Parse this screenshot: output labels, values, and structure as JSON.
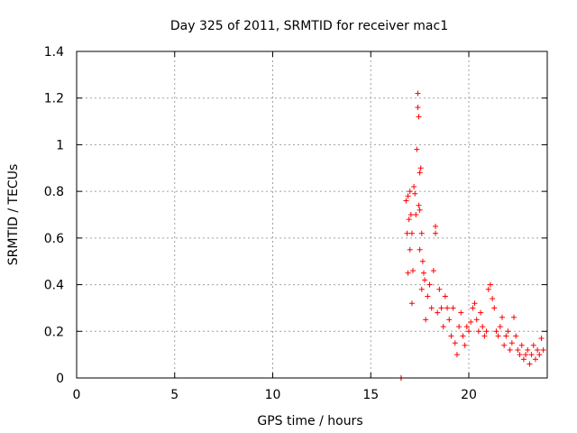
{
  "chart_data": {
    "type": "scatter",
    "title": "Day 325 of 2011, SRMTID for receiver mac1",
    "xlabel": "GPS time / hours",
    "ylabel": "SRMTID / TECUs",
    "xlim": [
      0,
      24
    ],
    "ylim": [
      0,
      1.4
    ],
    "xticks": [
      0,
      5,
      10,
      15,
      20
    ],
    "yticks": [
      0,
      0.2,
      0.4,
      0.6,
      0.8,
      1,
      1.2,
      1.4
    ],
    "ytick_labels": [
      "0",
      "0.2",
      "0.4",
      "0.6",
      "0.8",
      "1",
      "1.2",
      "1.4"
    ],
    "grid": true,
    "marker": "+",
    "color": "#ff0000",
    "series": [
      {
        "name": "mac1",
        "x": [
          16.55,
          16.55,
          16.55,
          16.8,
          16.85,
          16.9,
          16.9,
          16.95,
          17.0,
          17.0,
          17.05,
          17.1,
          17.1,
          17.15,
          17.2,
          17.25,
          17.3,
          17.35,
          17.4,
          17.4,
          17.45,
          17.45,
          17.5,
          17.5,
          17.5,
          17.55,
          17.6,
          17.6,
          17.65,
          17.7,
          17.75,
          17.8,
          17.9,
          18.0,
          18.1,
          18.2,
          18.3,
          18.3,
          18.4,
          18.5,
          18.6,
          18.7,
          18.8,
          18.9,
          19.0,
          19.1,
          19.2,
          19.3,
          19.4,
          19.5,
          19.6,
          19.7,
          19.8,
          19.9,
          20.0,
          20.1,
          20.2,
          20.3,
          20.4,
          20.5,
          20.6,
          20.7,
          20.8,
          20.9,
          21.0,
          21.1,
          21.2,
          21.3,
          21.4,
          21.5,
          21.6,
          21.7,
          21.8,
          21.9,
          22.0,
          22.1,
          22.2,
          22.3,
          22.4,
          22.5,
          22.6,
          22.7,
          22.8,
          22.9,
          23.0,
          23.1,
          23.2,
          23.3,
          23.4,
          23.5,
          23.6,
          23.7,
          23.8
        ],
        "y": [
          0.0,
          0.0,
          0.0,
          0.76,
          0.62,
          0.45,
          0.78,
          0.68,
          0.8,
          0.55,
          0.7,
          0.32,
          0.62,
          0.46,
          0.82,
          0.79,
          0.7,
          0.98,
          1.22,
          1.16,
          1.12,
          0.74,
          0.88,
          0.72,
          0.55,
          0.9,
          0.62,
          0.38,
          0.5,
          0.45,
          0.42,
          0.25,
          0.35,
          0.4,
          0.3,
          0.46,
          0.62,
          0.65,
          0.28,
          0.38,
          0.3,
          0.22,
          0.35,
          0.3,
          0.25,
          0.18,
          0.3,
          0.15,
          0.1,
          0.22,
          0.28,
          0.18,
          0.14,
          0.22,
          0.2,
          0.24,
          0.3,
          0.32,
          0.25,
          0.2,
          0.28,
          0.22,
          0.18,
          0.2,
          0.38,
          0.4,
          0.34,
          0.3,
          0.2,
          0.18,
          0.22,
          0.26,
          0.14,
          0.18,
          0.2,
          0.12,
          0.15,
          0.26,
          0.18,
          0.12,
          0.1,
          0.14,
          0.08,
          0.1,
          0.12,
          0.06,
          0.1,
          0.14,
          0.08,
          0.12,
          0.1,
          0.17,
          0.12
        ]
      }
    ]
  }
}
